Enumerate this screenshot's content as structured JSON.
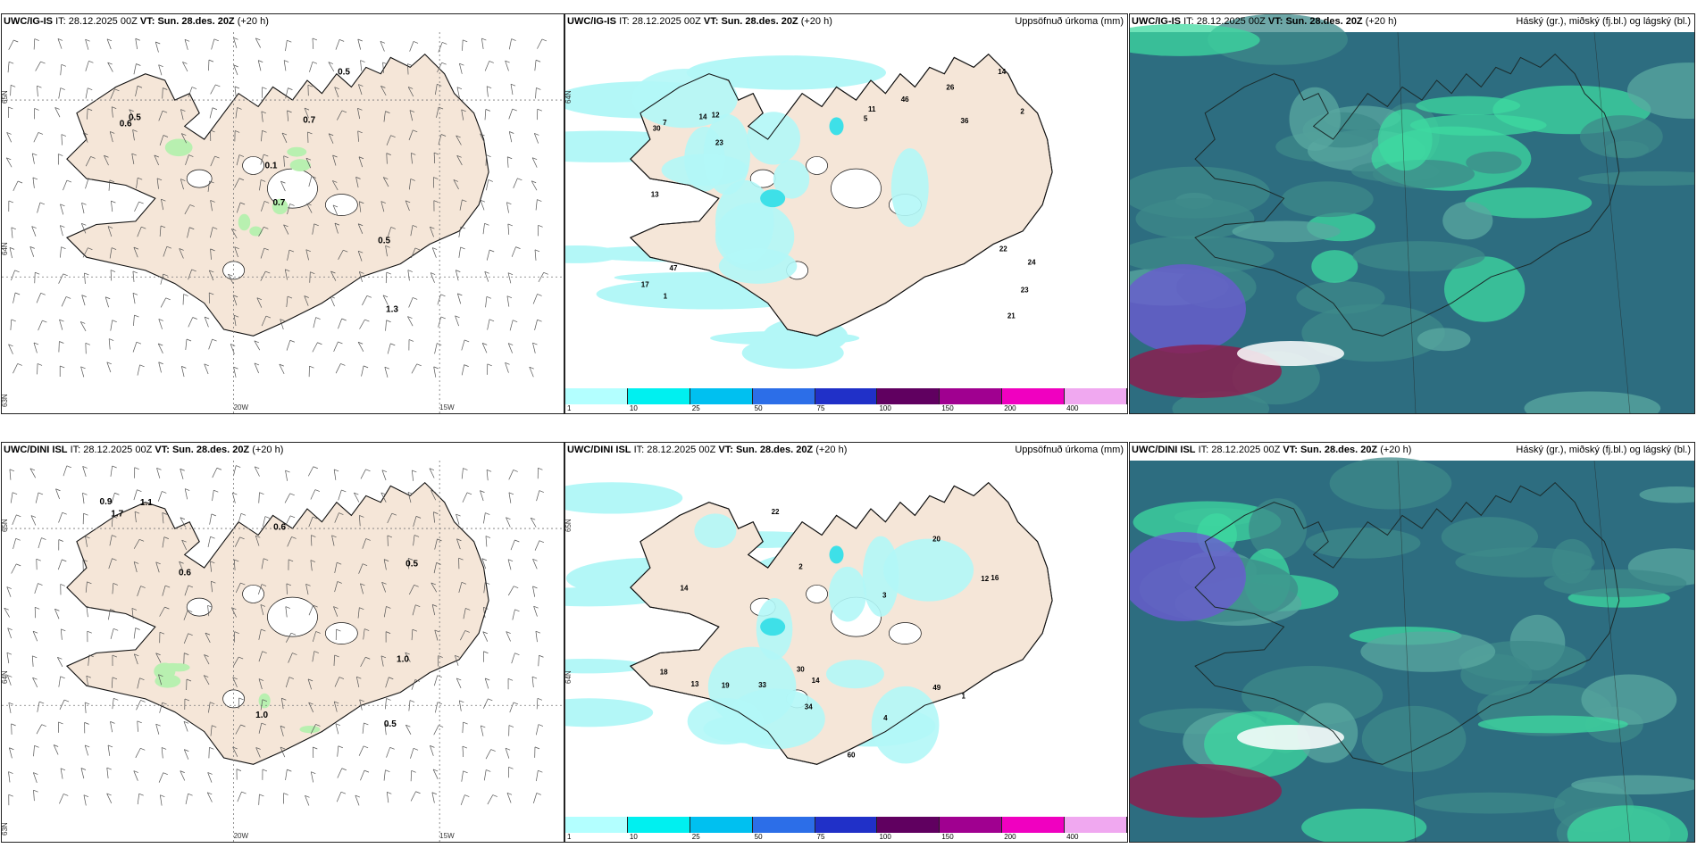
{
  "panels": [
    {
      "id": "top-wind",
      "model": "UWC/IG-IS",
      "it_label": "IT:",
      "it_value": "28.12.2025 00Z",
      "vt_label": "VT:",
      "vt_value": "Sun. 28.des. 20Z",
      "lead": "(+20 h)",
      "legend_title": "",
      "axis_labels": [
        "65N",
        "64N",
        "63N",
        "20W",
        "15W"
      ],
      "point_labels": [
        "0.6",
        "0.5",
        "0.7",
        "0.5",
        "1.3",
        "0.5",
        "0.1",
        "0.7"
      ]
    },
    {
      "id": "top-precip",
      "model": "UWC/IG-IS",
      "it_label": "IT:",
      "it_value": "28.12.2025 00Z",
      "vt_label": "VT:",
      "vt_value": "Sun. 28.des. 20Z",
      "lead": "(+20 h)",
      "legend_title": "Uppsöfnuð úrkoma (mm)",
      "axis_labels": [
        "64N"
      ],
      "point_labels": [
        "1",
        "2",
        "5",
        "7",
        "14",
        "23",
        "21",
        "24",
        "22",
        "13",
        "36",
        "47",
        "46",
        "23",
        "17",
        "12",
        "26",
        "30",
        "14",
        "11"
      ]
    },
    {
      "id": "top-cloud",
      "model": "UWC/IG-IS",
      "it_label": "IT:",
      "it_value": "28.12.2025 00Z",
      "vt_label": "VT:",
      "vt_value": "Sun. 28.des. 20Z",
      "lead": "(+20 h)",
      "legend_title": "Háský (gr.), miðský (fj.bl.) og lágský (bl.)",
      "axis_labels": [],
      "point_labels": []
    },
    {
      "id": "bottom-wind",
      "model": "UWC/DINI ISL",
      "it_label": "IT:",
      "it_value": "28.12.2025 00Z",
      "vt_label": "VT:",
      "vt_value": "Sun. 28.des. 20Z",
      "lead": "(+20 h)",
      "legend_title": "",
      "axis_labels": [
        "65N",
        "64N",
        "63N",
        "20W",
        "15W"
      ],
      "point_labels": [
        "0.5",
        "0.6",
        "1.1",
        "1.0",
        "1.0",
        "0.9",
        "0.5",
        "1.7",
        "0.6"
      ]
    },
    {
      "id": "bottom-precip",
      "model": "UWC/DINI ISL",
      "it_label": "IT:",
      "it_value": "28.12.2025 00Z",
      "vt_label": "VT:",
      "vt_value": "Sun. 28.des. 20Z",
      "lead": "(+20 h)",
      "legend_title": "Uppsöfnuð úrkoma (mm)",
      "axis_labels": [
        "65N",
        "64N"
      ],
      "point_labels": [
        "1",
        "2",
        "3",
        "4",
        "12",
        "16",
        "20",
        "14",
        "18",
        "60",
        "14",
        "34",
        "33",
        "19",
        "22",
        "30",
        "49",
        "13"
      ]
    },
    {
      "id": "bottom-cloud",
      "model": "UWC/DINI ISL",
      "it_label": "IT:",
      "it_value": "28.12.2025 00Z",
      "vt_label": "VT:",
      "vt_value": "Sun. 28.des. 20Z",
      "lead": "(+20 h)",
      "legend_title": "Háský (gr.), miðský (fj.bl.) og lágský (bl.)",
      "axis_labels": [],
      "point_labels": []
    }
  ],
  "colorbar": {
    "ticks": [
      "1",
      "10",
      "25",
      "50",
      "75",
      "100",
      "150",
      "200",
      "400"
    ],
    "colors": [
      "#b3ffff",
      "#00f0f0",
      "#00c0f0",
      "#2c6ee8",
      "#2030c8",
      "#600060",
      "#a00090",
      "#f000c0",
      "#f0a8f0"
    ]
  },
  "colors": {
    "land": "#f5e6d8",
    "precip_light": "#b3f7f7",
    "precip_med": "#3ee0e8",
    "green_patch": "#b8f0b0",
    "cloud_dark": "#2d6d80",
    "cloud_teal": "#3e8a8a",
    "cloud_green": "#3dd9a0",
    "cloud_purple": "#6a5bd0",
    "cloud_maroon": "#8a2050"
  }
}
